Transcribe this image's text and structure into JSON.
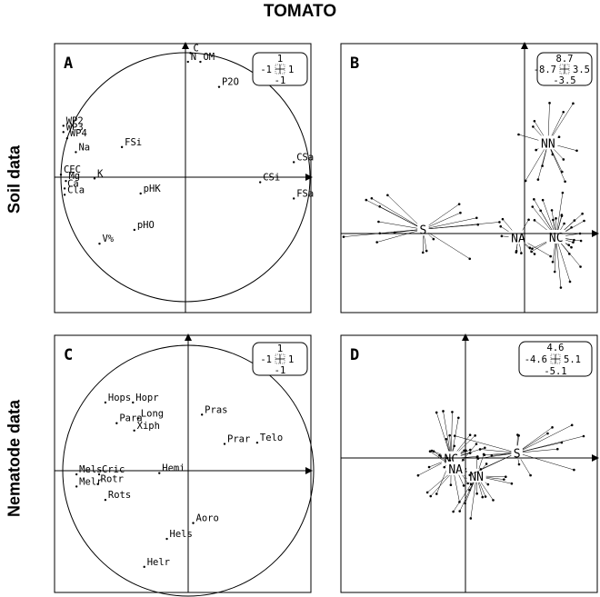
{
  "figure": {
    "title": "TOMATO",
    "row_labels": [
      "Soil data",
      "Nematode data"
    ]
  },
  "chart_data": [
    {
      "id": "A",
      "type": "scatter",
      "panel_label": "A",
      "kind": "correlation-circle",
      "xlim": [
        -1,
        1
      ],
      "ylim": [
        -1,
        1
      ],
      "scale_box": [
        "1",
        "-1",
        "1",
        "-1"
      ],
      "points": [
        {
          "label": "C",
          "x": 0.04,
          "y": 0.99
        },
        {
          "label": "N",
          "x": 0.02,
          "y": 0.92
        },
        {
          "label": "OM",
          "x": 0.12,
          "y": 0.92
        },
        {
          "label": "P2O",
          "x": 0.27,
          "y": 0.72
        },
        {
          "label": "WP2",
          "x": -0.98,
          "y": 0.41
        },
        {
          "label": "WP3",
          "x": -0.98,
          "y": 0.36
        },
        {
          "label": "WP4",
          "x": -0.95,
          "y": 0.31
        },
        {
          "label": "Na",
          "x": -0.88,
          "y": 0.2
        },
        {
          "label": "FSi",
          "x": -0.51,
          "y": 0.24
        },
        {
          "label": "CSa",
          "x": 0.87,
          "y": 0.12
        },
        {
          "label": "CEC",
          "x": -1.0,
          "y": 0.02
        },
        {
          "label": "Mg",
          "x": -0.96,
          "y": -0.03
        },
        {
          "label": "K",
          "x": -0.73,
          "y": -0.01
        },
        {
          "label": "CSi",
          "x": 0.6,
          "y": -0.04
        },
        {
          "label": "Ca",
          "x": -0.97,
          "y": -0.09
        },
        {
          "label": "Cla",
          "x": -0.97,
          "y": -0.14
        },
        {
          "label": "pHK",
          "x": -0.36,
          "y": -0.13
        },
        {
          "label": "FSa",
          "x": 0.87,
          "y": -0.17
        },
        {
          "label": "pHO",
          "x": -0.41,
          "y": -0.42
        },
        {
          "label": "V%",
          "x": -0.69,
          "y": -0.53
        }
      ]
    },
    {
      "id": "B",
      "type": "scatter",
      "panel_label": "B",
      "kind": "between-class-star-plot",
      "xlim": [
        -8.7,
        3.5
      ],
      "ylim": [
        -3.5,
        8.7
      ],
      "scale_box": [
        "8.7",
        "-8.7",
        "3.5",
        "-3.5"
      ],
      "centroids": [
        {
          "label": "S",
          "x": -4.79,
          "y": 0.2
        },
        {
          "label": "NA",
          "x": -0.3,
          "y": -0.19
        },
        {
          "label": "NC",
          "x": 1.49,
          "y": -0.17
        },
        {
          "label": "NN",
          "x": 1.11,
          "y": 4.24
        }
      ]
    },
    {
      "id": "C",
      "type": "scatter",
      "panel_label": "C",
      "kind": "correlation-circle",
      "xlim": [
        -1,
        1
      ],
      "ylim": [
        -1,
        1
      ],
      "scale_box": [
        "1",
        "-1",
        "1",
        "-1"
      ],
      "points": [
        {
          "label": "Hops",
          "x": -0.66,
          "y": 0.56
        },
        {
          "label": "Hopr",
          "x": -0.44,
          "y": 0.56
        },
        {
          "label": "Long",
          "x": -0.4,
          "y": 0.43
        },
        {
          "label": "Para",
          "x": -0.57,
          "y": 0.39
        },
        {
          "label": "Xiph",
          "x": -0.43,
          "y": 0.33
        },
        {
          "label": "Pras",
          "x": 0.11,
          "y": 0.46
        },
        {
          "label": "Prar",
          "x": 0.29,
          "y": 0.22
        },
        {
          "label": "Telo",
          "x": 0.55,
          "y": 0.23
        },
        {
          "label": "Mels",
          "x": -0.89,
          "y": -0.03
        },
        {
          "label": "Cric",
          "x": -0.71,
          "y": -0.03
        },
        {
          "label": "Hemi",
          "x": -0.23,
          "y": -0.02
        },
        {
          "label": "Rotr",
          "x": -0.72,
          "y": -0.11
        },
        {
          "label": "Melr",
          "x": -0.89,
          "y": -0.13
        },
        {
          "label": "Rots",
          "x": -0.66,
          "y": -0.24
        },
        {
          "label": "Aoro",
          "x": 0.04,
          "y": -0.43
        },
        {
          "label": "Hels",
          "x": -0.17,
          "y": -0.56
        },
        {
          "label": "Helr",
          "x": -0.35,
          "y": -0.79
        }
      ]
    },
    {
      "id": "D",
      "type": "scatter",
      "panel_label": "D",
      "kind": "between-class-star-plot",
      "xlim": [
        -4.6,
        5.1
      ],
      "ylim": [
        -5.1,
        4.6
      ],
      "scale_box": [
        "4.6",
        "-4.6",
        "5.1",
        "-5.1"
      ],
      "centroids": [
        {
          "label": "NC",
          "x": -0.58,
          "y": -0.02
        },
        {
          "label": "NA",
          "x": -0.4,
          "y": -0.44
        },
        {
          "label": "NN",
          "x": 0.45,
          "y": -0.74
        },
        {
          "label": "S",
          "x": 2.09,
          "y": 0.21
        }
      ]
    }
  ]
}
